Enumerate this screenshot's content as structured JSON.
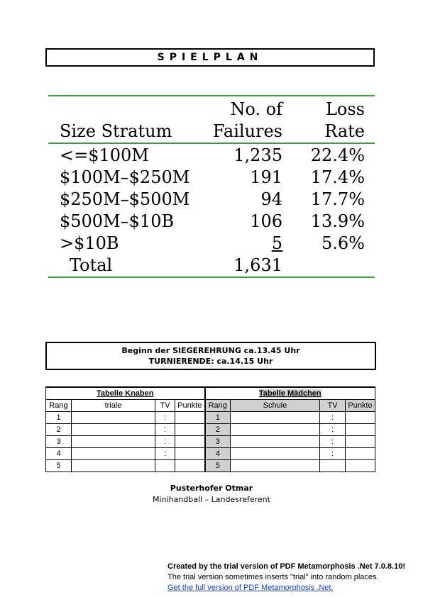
{
  "header": {
    "title": "SPIELPLAN"
  },
  "stratum_table": {
    "headers": {
      "col1": "Size Stratum",
      "col2_line1": "No. of",
      "col2_line2": "Failures",
      "col3_line1": "Loss",
      "col3_line2": "Rate"
    },
    "rows": [
      {
        "stratum": "<=$100M",
        "failures": "1,235",
        "rate": "22.4%"
      },
      {
        "stratum": "$100M–$250M",
        "failures": "191",
        "rate": "17.4%"
      },
      {
        "stratum": "$250M–$500M",
        "failures": "94",
        "rate": "17.7%"
      },
      {
        "stratum": "$500M–$10B",
        "failures": "106",
        "rate": "13.9%"
      },
      {
        "stratum": ">$10B",
        "failures": "5",
        "rate": "5.6%"
      }
    ],
    "total": {
      "label": "Total",
      "failures": "1,631"
    }
  },
  "info": {
    "line1": "Beginn der SIEGEREHRUNG ca.13.45 Uhr",
    "line2": "TURNIERENDE: ca.14.15 Uhr"
  },
  "standings": {
    "boys_title": "Tabelle Knaben",
    "girls_title": "Tabelle Mädchen",
    "boys_headers": [
      "Rang",
      "triale",
      "TV",
      "Punkte"
    ],
    "girls_headers": [
      "Rang",
      "Schule",
      "TV",
      "Punkte"
    ],
    "ranks": [
      "1",
      "2",
      "3",
      "4",
      "5"
    ],
    "colon": ":"
  },
  "signature": {
    "name": "Pusterhofer Otmar",
    "role": "Minihandball – Landesreferent"
  },
  "trial_notice": {
    "line1": "Created by the trial version of PDF Metamorphosis .Net 7.0.8.10!",
    "line2": "The trial version sometimes inserts \"trial\" into random places.",
    "link": "Get the full version of PDF Metamorphosis .Net."
  }
}
